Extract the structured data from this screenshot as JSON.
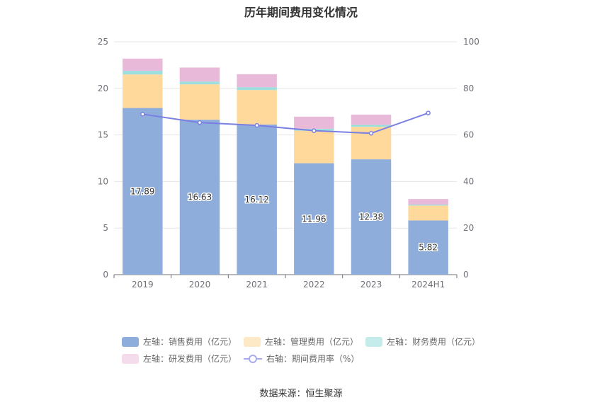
{
  "chart_data": {
    "type": "bar",
    "title": "历年期间费用变化情况",
    "categories": [
      "2019",
      "2020",
      "2021",
      "2022",
      "2023",
      "2024H1"
    ],
    "y_left": {
      "ticks": [
        "0",
        "5",
        "10",
        "15",
        "20",
        "25"
      ],
      "ylim": [
        0,
        25
      ]
    },
    "y_right": {
      "ticks": [
        "0",
        "20",
        "40",
        "60",
        "80",
        "100"
      ],
      "ylim": [
        0,
        100
      ]
    },
    "grid": true,
    "legend_position": "bottom",
    "series": [
      {
        "name": "左轴：销售费用（亿元）",
        "type": "bar",
        "axis": "left",
        "color": "#8eadda",
        "values": [
          17.89,
          16.63,
          16.12,
          11.96,
          12.38,
          5.82
        ],
        "labels": [
          "17.89",
          "16.63",
          "16.12",
          "11.96",
          "12.38",
          "5.82"
        ]
      },
      {
        "name": "左轴：管理费用（亿元）",
        "type": "bar",
        "axis": "left",
        "color": "#fed99b",
        "values": [
          3.6,
          3.8,
          3.7,
          3.5,
          3.5,
          1.6
        ]
      },
      {
        "name": "左轴：财务费用（亿元）",
        "type": "bar",
        "axis": "left",
        "color": "#9ddfdf",
        "values": [
          0.4,
          0.3,
          0.3,
          0.2,
          0.2,
          0.1
        ]
      },
      {
        "name": "左轴：研发费用（亿元）",
        "type": "bar",
        "axis": "left",
        "color": "#e8b9d9",
        "values": [
          1.3,
          1.5,
          1.4,
          1.3,
          1.1,
          0.6
        ]
      },
      {
        "name": "右轴：期间费用率（%）",
        "type": "line",
        "axis": "right",
        "color": "#7a7fe3",
        "values": [
          68.9,
          65.3,
          64.1,
          61.8,
          60.7,
          69.4
        ]
      }
    ]
  },
  "legend": {
    "items": [
      {
        "label": "左轴：销售费用（亿元）",
        "color": "#8eadda",
        "kind": "box"
      },
      {
        "label": "左轴：管理费用（亿元）",
        "color": "#fee9c6",
        "kind": "box"
      },
      {
        "label": "左轴：财务费用（亿元）",
        "color": "#c4eceb",
        "kind": "box"
      },
      {
        "label": "左轴：研发费用（亿元）",
        "color": "#f4dcec",
        "kind": "box"
      },
      {
        "label": "右轴：期间费用率（%）",
        "color": "#7a7fe3",
        "kind": "line"
      }
    ]
  },
  "source": "数据来源：恒生聚源"
}
